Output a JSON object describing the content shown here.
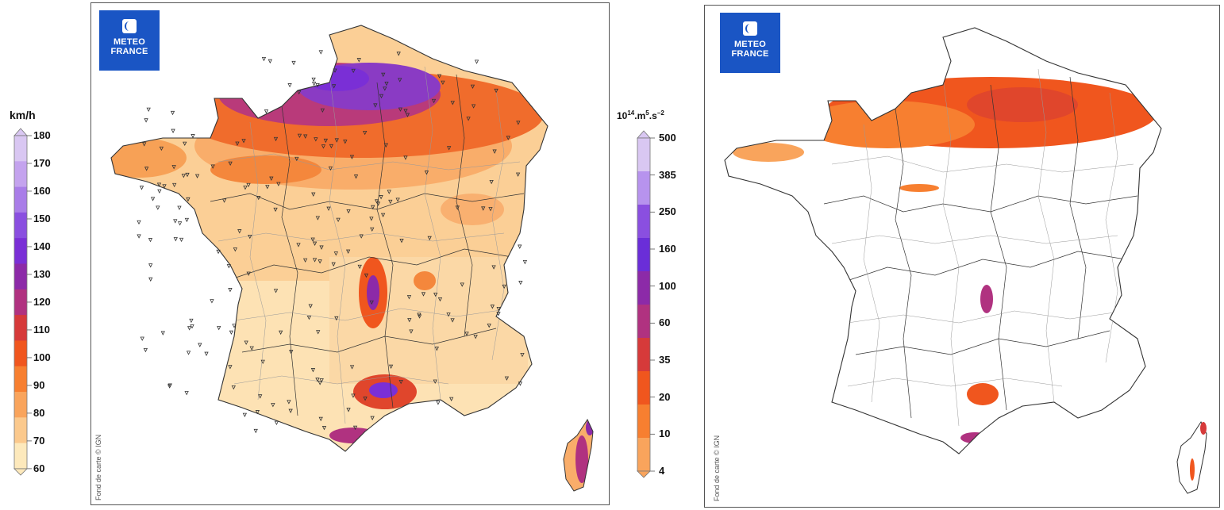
{
  "left_legend": {
    "unit": "km/h",
    "ticks": [
      "180",
      "170",
      "160",
      "150",
      "140",
      "130",
      "120",
      "110",
      "100",
      "90",
      "80",
      "70",
      "60"
    ],
    "colors": [
      "#d9c7f2",
      "#c4a3ee",
      "#a97de8",
      "#8a4fe0",
      "#7a2fd6",
      "#8c2aa8",
      "#b03280",
      "#d63a3a",
      "#f0561e",
      "#f77f30",
      "#f9a45c",
      "#fbc98d",
      "#fde9bc"
    ]
  },
  "right_legend": {
    "unit_base": "10",
    "unit_exp1": "14",
    "unit_mid": ".m",
    "unit_exp2": "5",
    "unit_mid2": ".s",
    "unit_exp3": "−2",
    "ticks": [
      "500",
      "385",
      "250",
      "160",
      "100",
      "60",
      "35",
      "20",
      "10",
      "4"
    ],
    "colors": [
      "#d9c7f2",
      "#b793ee",
      "#8a4fe0",
      "#6a2ed8",
      "#8c2aa8",
      "#b03280",
      "#d63a3a",
      "#f0561e",
      "#f77f30",
      "#f9a45c"
    ]
  },
  "left_map": {
    "logo_line1": "METEO",
    "logo_line2": "FRANCE",
    "credit": "Fond de carte © IGN"
  },
  "right_map": {
    "logo_line1": "METEO",
    "logo_line2": "FRANCE",
    "credit": "Fond de carte © IGN"
  }
}
